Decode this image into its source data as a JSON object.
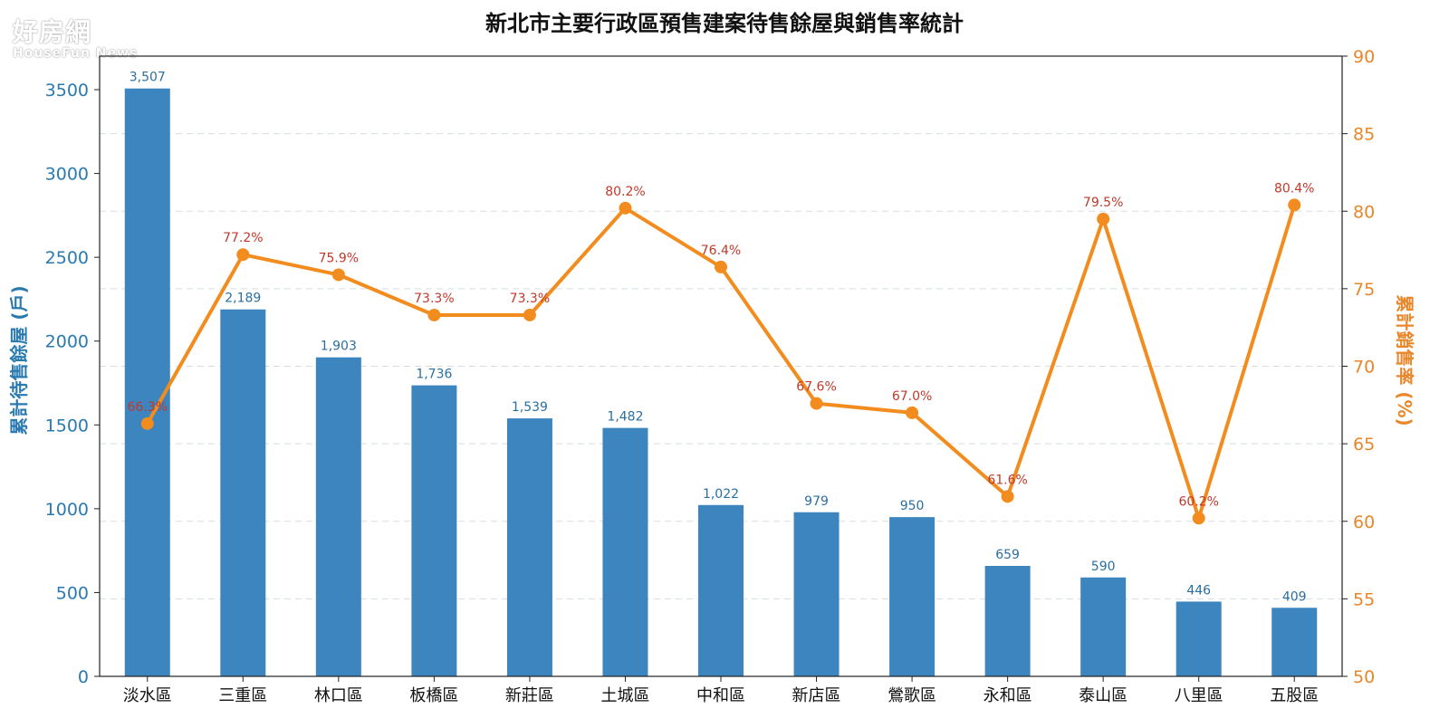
{
  "watermark": {
    "cn": "好房網",
    "en": "HouseFun News"
  },
  "chart_data": {
    "type": "bar+line",
    "title": "新北市主要行政區預售建案待售餘屋與銷售率統計",
    "categories": [
      "淡水區",
      "三重區",
      "林口區",
      "板橋區",
      "新莊區",
      "土城區",
      "中和區",
      "新店區",
      "鶯歌區",
      "永和區",
      "泰山區",
      "八里區",
      "五股區"
    ],
    "bars": {
      "ylabel": "累計待售餘屋 (戶)",
      "values": [
        3507,
        2189,
        1903,
        1736,
        1539,
        1482,
        1022,
        979,
        950,
        659,
        590,
        446,
        409
      ],
      "labels": [
        "3,507",
        "2,189",
        "1,903",
        "1,736",
        "1,539",
        "1,482",
        "1,022",
        "979",
        "950",
        "659",
        "590",
        "446",
        "409"
      ],
      "ylim": [
        0,
        3700
      ],
      "ticks": [
        0,
        500,
        1000,
        1500,
        2000,
        2500,
        3000,
        3500
      ],
      "color": "#3d85be",
      "axis_color": "#2a7ab0"
    },
    "line": {
      "ylabel": "累計銷售率 (%)",
      "values": [
        66.3,
        77.2,
        75.9,
        73.3,
        73.3,
        80.2,
        76.4,
        67.6,
        67.0,
        61.6,
        79.5,
        60.2,
        80.4
      ],
      "labels": [
        "66.3%",
        "77.2%",
        "75.9%",
        "73.3%",
        "73.3%",
        "80.2%",
        "76.4%",
        "67.6%",
        "67.0%",
        "61.6%",
        "79.5%",
        "60.2%",
        "80.4%"
      ],
      "ylim": [
        50,
        90
      ],
      "ticks": [
        50,
        55,
        60,
        65,
        70,
        75,
        80,
        85,
        90
      ],
      "color": "#f28c1e",
      "label_color": "#c0392b",
      "axis_color": "#e8862a"
    },
    "grid": "horizontal-dashed"
  }
}
